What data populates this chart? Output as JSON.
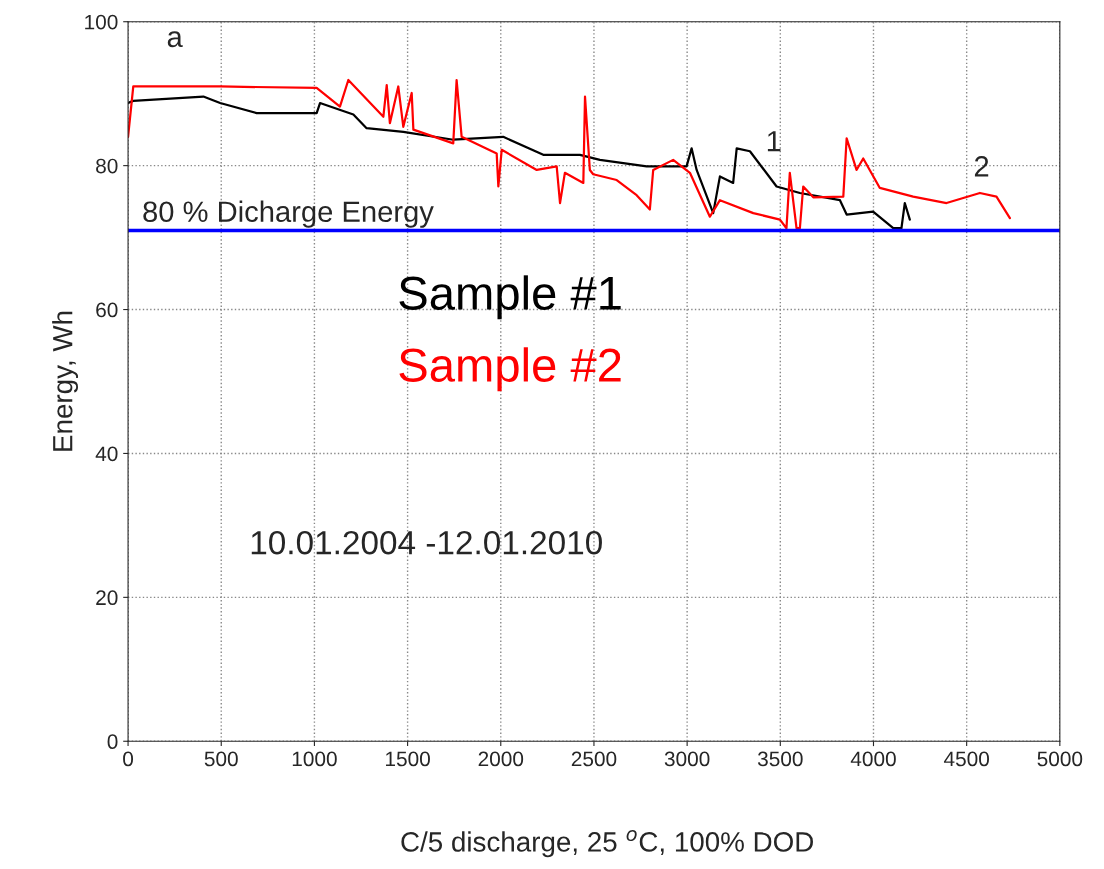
{
  "chart_data": {
    "type": "line",
    "xlabel": "C/5 discharge, 25 $^{o}$C, 100% DOD",
    "ylabel": "Energy, Wh",
    "xlim": [
      0,
      5000
    ],
    "ylim": [
      0,
      100
    ],
    "xticks": [
      0,
      500,
      1000,
      1500,
      2000,
      2500,
      3000,
      3500,
      4000,
      4500,
      5000
    ],
    "yticks": [
      0,
      20,
      40,
      60,
      80,
      100
    ],
    "grid": true,
    "legend": false,
    "marker": "none",
    "line_style": "solid",
    "ref_lines": [
      {
        "axis": "y",
        "value": 71,
        "label": "80 % Dicharge Energy",
        "color": "#0000ff"
      }
    ],
    "annotations": [
      "a",
      "1",
      "2",
      "10.01.2004 -12.01.2010"
    ],
    "series": [
      {
        "name": "Sample #1",
        "color": "#000000",
        "x": [
          0,
          27,
          404,
          494,
          690,
          1012,
          1030,
          1209,
          1280,
          1477,
          1745,
          2013,
          2228,
          2425,
          2532,
          2783,
          2997,
          3024,
          3051,
          3140,
          3176,
          3247,
          3266,
          3337,
          3480,
          3605,
          3820,
          3856,
          3998,
          4106,
          4150,
          4168,
          4195
        ],
        "values": [
          88.7,
          89,
          89.6,
          88.7,
          87.3,
          87.3,
          88.7,
          87.1,
          85.2,
          84.7,
          83.6,
          84,
          81.5,
          81.5,
          80.8,
          79.9,
          79.9,
          82.4,
          79.4,
          73.4,
          78.5,
          77.6,
          82.4,
          82,
          77.1,
          76.2,
          75.2,
          73.2,
          73.6,
          71.3,
          71.3,
          74.8,
          72.5
        ]
      },
      {
        "name": "Sample #2",
        "color": "#ff0000",
        "x": [
          0,
          28,
          494,
          1012,
          1137,
          1182,
          1370,
          1388,
          1405,
          1450,
          1477,
          1522,
          1531,
          1745,
          1763,
          1790,
          1978,
          1987,
          2005,
          2193,
          2300,
          2318,
          2344,
          2443,
          2452,
          2478,
          2496,
          2622,
          2729,
          2800,
          2818,
          2925,
          3015,
          3122,
          3176,
          3355,
          3498,
          3533,
          3551,
          3587,
          3605,
          3623,
          3677,
          3838,
          3856,
          3909,
          3945,
          4034,
          4213,
          4392,
          4571,
          4660,
          4732
        ],
        "values": [
          84,
          91,
          91,
          90.8,
          88.2,
          91.9,
          86.8,
          91.2,
          85.9,
          91,
          85.4,
          90.1,
          85,
          83.1,
          91.9,
          84,
          81.7,
          77.1,
          82.2,
          79.4,
          79.9,
          74.8,
          79,
          77.6,
          89.6,
          79.4,
          78.8,
          78,
          75.9,
          73.9,
          79.4,
          80.8,
          79,
          72.9,
          75.2,
          73.4,
          72.5,
          71.3,
          79,
          71.3,
          71.3,
          77.1,
          75.6,
          75.7,
          83.8,
          79.4,
          81,
          76.9,
          75.7,
          74.8,
          76.2,
          75.7,
          72.7
        ]
      }
    ]
  }
}
